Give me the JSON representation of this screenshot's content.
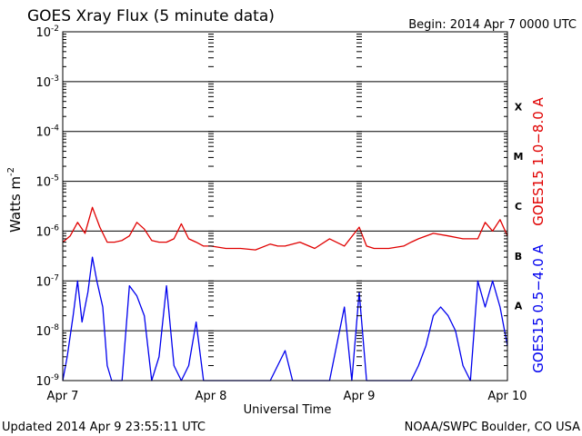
{
  "chart_data": {
    "type": "line",
    "title": "GOES Xray Flux (5 minute data)",
    "begin_text": "Begin:  2014 Apr 7 0000 UTC",
    "xlabel": "Universal Time",
    "ylabel": "Watts m",
    "ylabel_superscript": "-2",
    "y_scale": "log",
    "ylim": [
      1e-09,
      0.01
    ],
    "y_ticks": [
      {
        "mantissa": "10",
        "exp": "-2"
      },
      {
        "mantissa": "10",
        "exp": "-3"
      },
      {
        "mantissa": "10",
        "exp": "-4"
      },
      {
        "mantissa": "10",
        "exp": "-5"
      },
      {
        "mantissa": "10",
        "exp": "-6"
      },
      {
        "mantissa": "10",
        "exp": "-7"
      },
      {
        "mantissa": "10",
        "exp": "-8"
      },
      {
        "mantissa": "10",
        "exp": "-9"
      }
    ],
    "y_tick_exps": [
      -2,
      -3,
      -4,
      -5,
      -6,
      -7,
      -8,
      -9
    ],
    "xlim_days": [
      0,
      3
    ],
    "x_ticks": [
      "Apr 7",
      "Apr 8",
      "Apr 9",
      "Apr 10"
    ],
    "flare_classes": [
      "X",
      "M",
      "C",
      "B",
      "A"
    ],
    "flare_class_exps": [
      -3.5,
      -4.5,
      -5.5,
      -6.5,
      -7.5
    ],
    "grid": true,
    "updated_text": "Updated 2014 Apr  9 23:55:11 UTC",
    "credit_text": "NOAA/SWPC Boulder, CO USA",
    "series": [
      {
        "name": "GOES15 1.0−8.0 A",
        "color": "#e00000",
        "x_days": [
          0,
          0.05,
          0.1,
          0.15,
          0.2,
          0.25,
          0.3,
          0.35,
          0.4,
          0.45,
          0.5,
          0.55,
          0.6,
          0.65,
          0.7,
          0.75,
          0.8,
          0.85,
          0.9,
          0.95,
          1.0,
          1.1,
          1.2,
          1.3,
          1.4,
          1.45,
          1.5,
          1.55,
          1.6,
          1.7,
          1.8,
          1.9,
          2.0,
          2.05,
          2.1,
          2.2,
          2.3,
          2.35,
          2.4,
          2.5,
          2.6,
          2.7,
          2.8,
          2.85,
          2.9,
          2.95,
          3.0
        ],
        "y": [
          6e-07,
          8e-07,
          1.5e-06,
          9e-07,
          3e-06,
          1.2e-06,
          6e-07,
          6e-07,
          6.5e-07,
          8e-07,
          1.5e-06,
          1.1e-06,
          6.5e-07,
          6e-07,
          6e-07,
          7e-07,
          1.4e-06,
          7e-07,
          6e-07,
          5e-07,
          5e-07,
          4.5e-07,
          4.5e-07,
          4.2e-07,
          5.5e-07,
          5e-07,
          5e-07,
          5.5e-07,
          6e-07,
          4.5e-07,
          7e-07,
          5e-07,
          1.2e-06,
          5e-07,
          4.5e-07,
          4.5e-07,
          5e-07,
          6e-07,
          7e-07,
          9e-07,
          8e-07,
          7e-07,
          7e-07,
          1.5e-06,
          1e-06,
          1.7e-06,
          8e-07
        ]
      },
      {
        "name": "GOES15 0.5−4.0 A",
        "color": "#0000ee",
        "x_days": [
          0,
          0.03,
          0.07,
          0.1,
          0.13,
          0.17,
          0.2,
          0.23,
          0.27,
          0.3,
          0.33,
          0.37,
          0.4,
          0.45,
          0.5,
          0.55,
          0.6,
          0.65,
          0.7,
          0.75,
          0.8,
          0.85,
          0.9,
          0.95,
          1.0,
          1.2,
          1.4,
          1.5,
          1.55,
          1.6,
          1.8,
          1.9,
          1.95,
          2.0,
          2.05,
          2.2,
          2.35,
          2.4,
          2.45,
          2.5,
          2.55,
          2.6,
          2.65,
          2.7,
          2.75,
          2.8,
          2.85,
          2.9,
          2.95,
          3.0
        ],
        "y": [
          1e-09,
          3e-09,
          2e-08,
          1e-07,
          1.5e-08,
          6e-08,
          3e-07,
          1e-07,
          3e-08,
          2e-09,
          1e-09,
          1e-09,
          1e-09,
          8e-08,
          5e-08,
          2e-08,
          1e-09,
          3e-09,
          8e-08,
          2e-09,
          1e-09,
          2e-09,
          1.5e-08,
          1e-09,
          1e-09,
          1e-09,
          1e-09,
          4e-09,
          1e-09,
          1e-09,
          1e-09,
          3e-08,
          1e-09,
          6e-08,
          1e-09,
          1e-09,
          1e-09,
          2e-09,
          5e-09,
          2e-08,
          3e-08,
          2e-08,
          1e-08,
          2e-09,
          1e-09,
          1e-07,
          3e-08,
          1e-07,
          3e-08,
          5e-09
        ]
      }
    ]
  }
}
